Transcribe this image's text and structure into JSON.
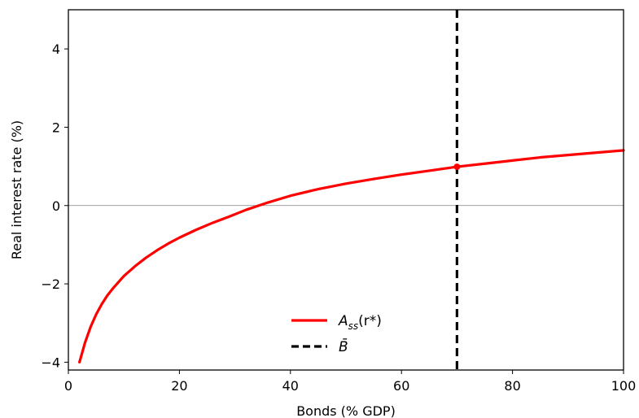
{
  "chart_data": {
    "type": "line",
    "title": "",
    "xlabel": "Bonds (% GDP)",
    "ylabel": "Real interest rate (%)",
    "xlim": [
      0,
      100
    ],
    "ylim": [
      -4.2,
      5
    ],
    "xticks": [
      0,
      20,
      40,
      60,
      80,
      100
    ],
    "yticks": [
      -4,
      -2,
      0,
      2,
      4
    ],
    "grid": false,
    "legend_position": "lower-center",
    "colors": {
      "series": "#ff0000",
      "vline": "#000000",
      "hline": "#808080"
    },
    "series": [
      {
        "name": "A_ss(r*)",
        "label_main": "A",
        "label_sub": "ss",
        "label_tail": "(r*)",
        "x": [
          2,
          3,
          4,
          5,
          6,
          7,
          8,
          10,
          12,
          14,
          16,
          18,
          20,
          23,
          26,
          29,
          32,
          36,
          40,
          45,
          50,
          55,
          60,
          65,
          70,
          75,
          80,
          85,
          90,
          95,
          100
        ],
        "values": [
          -4.0,
          -3.5,
          -3.1,
          -2.78,
          -2.52,
          -2.3,
          -2.12,
          -1.8,
          -1.55,
          -1.33,
          -1.14,
          -0.97,
          -0.82,
          -0.62,
          -0.44,
          -0.28,
          -0.11,
          0.08,
          0.25,
          0.42,
          0.56,
          0.68,
          0.79,
          0.89,
          0.99,
          1.07,
          1.15,
          1.23,
          1.29,
          1.35,
          1.41
        ]
      }
    ],
    "reference_lines": [
      {
        "name": "B̄",
        "orientation": "vertical",
        "x": 70,
        "style": "dashed"
      },
      {
        "orientation": "horizontal",
        "y": 0,
        "style": "solid"
      }
    ],
    "markers": [
      {
        "x": 70,
        "y": 0.99
      }
    ]
  }
}
